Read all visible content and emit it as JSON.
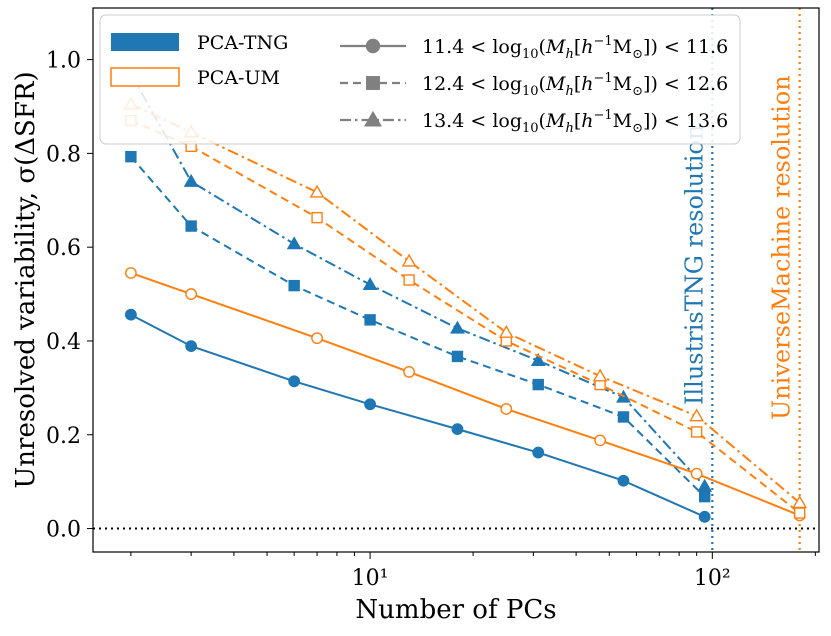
{
  "chart_data": {
    "type": "line",
    "xscale": "log",
    "xlabel": "Number of PCs",
    "ylabel": "Unresolved variability, σ(ΔSFR)",
    "xlim": [
      1.55,
      205
    ],
    "ylim": [
      -0.05,
      1.11
    ],
    "x_ticks": [
      {
        "value": 10,
        "label": "10¹"
      },
      {
        "value": 100,
        "label": "10²"
      }
    ],
    "y_ticks": [
      0.0,
      0.2,
      0.4,
      0.6,
      0.8,
      1.0
    ],
    "y_tick_labels": [
      "0.0",
      "0.2",
      "0.4",
      "0.6",
      "0.8",
      "1.0"
    ],
    "hline": {
      "y": 0.0,
      "style": "dotted",
      "color": "#000000"
    },
    "vlines": [
      {
        "x": 100,
        "color": "#1f77b4",
        "style": "dotted",
        "label": "IllustrisTNG resolution"
      },
      {
        "x": 180,
        "color": "#ff7f0e",
        "style": "dotted",
        "label": "UniverseMachine resolution"
      }
    ],
    "colors": {
      "tng": "#1f77b4",
      "um": "#ff7f0e",
      "gray": "#808080"
    },
    "series": [
      {
        "name": "PCA-TNG 11.4-11.6",
        "model": "tng",
        "mass_bin": 0,
        "marker": "circle",
        "dash": "solid",
        "filled": true,
        "x": [
          2,
          3,
          6,
          10,
          18,
          31,
          55,
          95
        ],
        "y": [
          0.456,
          0.389,
          0.314,
          0.265,
          0.212,
          0.162,
          0.102,
          0.025
        ]
      },
      {
        "name": "PCA-TNG 12.4-12.6",
        "model": "tng",
        "mass_bin": 1,
        "marker": "square",
        "dash": "dashed",
        "filled": true,
        "x": [
          2,
          3,
          6,
          10,
          18,
          31,
          55,
          95
        ],
        "y": [
          0.793,
          0.645,
          0.518,
          0.445,
          0.367,
          0.307,
          0.238,
          0.068
        ]
      },
      {
        "name": "PCA-TNG 13.4-13.6",
        "model": "tng",
        "mass_bin": 2,
        "marker": "triangle",
        "dash": "dashdot",
        "filled": true,
        "x": [
          2,
          3,
          6,
          10,
          18,
          31,
          55,
          95
        ],
        "y": [
          0.97,
          0.74,
          0.607,
          0.52,
          0.427,
          0.358,
          0.28,
          0.09
        ]
      },
      {
        "name": "PCA-UM 11.4-11.6",
        "model": "um",
        "mass_bin": 0,
        "marker": "circle",
        "dash": "solid",
        "filled": false,
        "x": [
          2,
          3,
          7,
          13,
          25,
          47,
          90,
          180
        ],
        "y": [
          0.545,
          0.5,
          0.406,
          0.334,
          0.255,
          0.188,
          0.117,
          0.028
        ]
      },
      {
        "name": "PCA-UM 12.4-12.6",
        "model": "um",
        "mass_bin": 1,
        "marker": "square",
        "dash": "dashed",
        "filled": false,
        "x": [
          2,
          3,
          7,
          13,
          25,
          47,
          90,
          180
        ],
        "y": [
          0.87,
          0.815,
          0.663,
          0.53,
          0.4,
          0.307,
          0.206,
          0.033
        ]
      },
      {
        "name": "PCA-UM 13.4-13.6",
        "model": "um",
        "mass_bin": 2,
        "marker": "triangle",
        "dash": "dashdot",
        "filled": false,
        "x": [
          2,
          3,
          7,
          13,
          25,
          47,
          90,
          180
        ],
        "y": [
          0.905,
          0.845,
          0.717,
          0.57,
          0.418,
          0.325,
          0.24,
          0.055
        ]
      }
    ],
    "legend": {
      "placement": "top-left",
      "models": [
        {
          "key": "tng",
          "label": "PCA-TNG",
          "style": "filled-patch"
        },
        {
          "key": "um",
          "label": "PCA-UM",
          "style": "outline-patch"
        }
      ],
      "mass_bins": [
        {
          "marker": "circle",
          "dash": "solid",
          "lo": "11.4",
          "hi": "11.6"
        },
        {
          "marker": "square",
          "dash": "dashed",
          "lo": "12.4",
          "hi": "12.6"
        },
        {
          "marker": "triangle",
          "dash": "dashdot",
          "lo": "13.4",
          "hi": "13.6"
        }
      ],
      "mass_label_parts": {
        "lt": " < ",
        "log": "log",
        "log_sub": "10",
        "open": "(",
        "M": "M",
        "sub_h": "h",
        "bracket_open": "[",
        "h": "h",
        "exp": "−1",
        "Msun": "M",
        "sun": "⊙",
        "close": "])"
      }
    }
  }
}
